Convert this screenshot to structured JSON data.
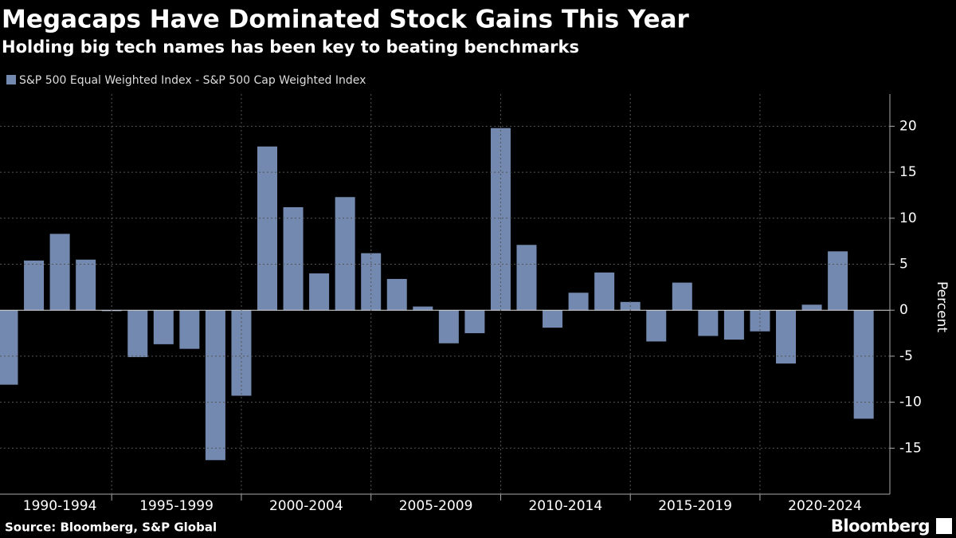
{
  "chart_data": {
    "type": "bar",
    "title": "Megacaps Have Dominated Stock Gains This Year",
    "subtitle": "Holding big tech names has been key to beating benchmarks",
    "y_axis_label": "Percent",
    "source": "Source: Bloomberg, S&P Global",
    "brand": "Bloomberg",
    "categories": [
      null,
      null,
      null,
      null,
      null,
      null,
      null,
      null,
      null,
      null,
      null,
      null,
      null,
      null,
      null,
      null,
      null,
      null,
      null,
      null,
      null,
      null,
      null,
      null,
      null,
      null,
      null,
      null,
      null,
      null,
      null,
      null,
      null,
      null
    ],
    "x_groups": [
      "1990-1994",
      "1995-1999",
      "2000-2004",
      "2005-2009",
      "2010-2014",
      "2015-2019",
      "2020-2024"
    ],
    "series": [
      {
        "name": "S&P 500 Equal Weighted Index - S&P 500 Cap Weighted Index",
        "color": "#7389b0",
        "values": [
          -8.1,
          5.4,
          8.3,
          5.5,
          -0.1,
          -5.1,
          -3.7,
          -4.2,
          -16.3,
          -9.3,
          17.8,
          11.2,
          4.0,
          12.3,
          6.2,
          3.4,
          0.4,
          -3.6,
          -2.5,
          19.8,
          7.1,
          -1.9,
          1.9,
          4.1,
          0.9,
          -3.4,
          3.0,
          -2.8,
          -3.2,
          -2.3,
          -5.8,
          0.6,
          6.4,
          -11.8
        ]
      }
    ],
    "ylim": [
      -20,
      23.5
    ],
    "yticks": [
      -15,
      -10,
      -5,
      0,
      5,
      10,
      15,
      20
    ],
    "grid": true
  }
}
